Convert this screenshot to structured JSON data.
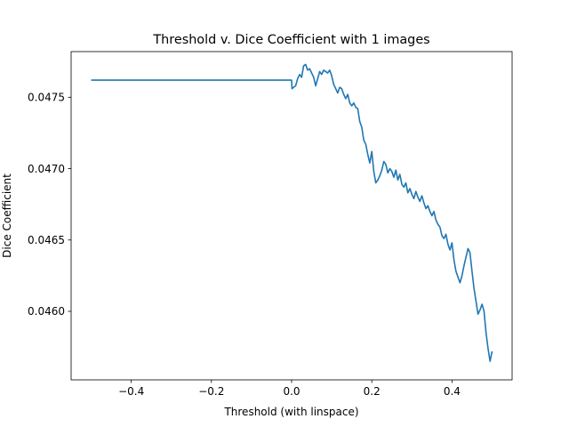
{
  "chart_data": {
    "type": "line",
    "title": "Threshold v. Dice Coefficient with 1 images",
    "xlabel": "Threshold (with linspace)",
    "ylabel": "Dice Coefficient",
    "xlim": [
      -0.55,
      0.55
    ],
    "ylim": [
      0.04552,
      0.04782
    ],
    "x_ticks": [
      -0.4,
      -0.2,
      0.0,
      0.2,
      0.4
    ],
    "x_tick_labels": [
      "−0.4",
      "−0.2",
      "0.0",
      "0.2",
      "0.4"
    ],
    "y_ticks": [
      0.046,
      0.0465,
      0.047,
      0.0475
    ],
    "y_tick_labels": [
      "0.0460",
      "0.0465",
      "0.0470",
      "0.0475"
    ],
    "grid": false,
    "line_color": "#1f77b4",
    "series": [
      {
        "x": [
          -0.5,
          0.0,
          0.001,
          0.005,
          0.01,
          0.015,
          0.02,
          0.025,
          0.03,
          0.035,
          0.04,
          0.045,
          0.05,
          0.055,
          0.06,
          0.065,
          0.07,
          0.075,
          0.08,
          0.085,
          0.09,
          0.095,
          0.1,
          0.105,
          0.11,
          0.115,
          0.12,
          0.125,
          0.13,
          0.135,
          0.14,
          0.145,
          0.15,
          0.155,
          0.16,
          0.165,
          0.17,
          0.175,
          0.18,
          0.185,
          0.19,
          0.195,
          0.2,
          0.205,
          0.21,
          0.215,
          0.22,
          0.225,
          0.23,
          0.235,
          0.24,
          0.245,
          0.25,
          0.255,
          0.26,
          0.265,
          0.27,
          0.275,
          0.28,
          0.285,
          0.29,
          0.295,
          0.3,
          0.305,
          0.31,
          0.315,
          0.32,
          0.325,
          0.33,
          0.335,
          0.34,
          0.345,
          0.35,
          0.355,
          0.36,
          0.365,
          0.37,
          0.375,
          0.38,
          0.385,
          0.39,
          0.395,
          0.4,
          0.405,
          0.41,
          0.415,
          0.42,
          0.425,
          0.43,
          0.435,
          0.44,
          0.445,
          0.45,
          0.455,
          0.46,
          0.465,
          0.47,
          0.475,
          0.48,
          0.485,
          0.49,
          0.495,
          0.5
        ],
        "y": [
          0.04762,
          0.04762,
          0.04756,
          0.04757,
          0.04758,
          0.04763,
          0.04766,
          0.04764,
          0.04772,
          0.04773,
          0.04769,
          0.0477,
          0.04767,
          0.04764,
          0.04758,
          0.04763,
          0.04768,
          0.04766,
          0.04769,
          0.04768,
          0.04767,
          0.04769,
          0.04765,
          0.04759,
          0.04756,
          0.04753,
          0.04757,
          0.04756,
          0.04752,
          0.04749,
          0.04752,
          0.04746,
          0.04744,
          0.04746,
          0.04743,
          0.04742,
          0.04733,
          0.04729,
          0.0472,
          0.04717,
          0.0471,
          0.04704,
          0.04712,
          0.04698,
          0.0469,
          0.04692,
          0.04695,
          0.04699,
          0.04705,
          0.04703,
          0.04697,
          0.047,
          0.04698,
          0.04694,
          0.04699,
          0.04692,
          0.04696,
          0.04689,
          0.04687,
          0.0469,
          0.04683,
          0.04686,
          0.04682,
          0.04679,
          0.04684,
          0.0468,
          0.04677,
          0.04681,
          0.04676,
          0.04672,
          0.04674,
          0.0467,
          0.04667,
          0.0467,
          0.04664,
          0.04661,
          0.04659,
          0.04653,
          0.04651,
          0.04654,
          0.04647,
          0.04643,
          0.04648,
          0.04636,
          0.04628,
          0.04624,
          0.0462,
          0.04625,
          0.04632,
          0.04638,
          0.04644,
          0.04641,
          0.04628,
          0.04616,
          0.04607,
          0.04598,
          0.04601,
          0.04605,
          0.046,
          0.04585,
          0.04574,
          0.04565,
          0.04572
        ]
      }
    ]
  }
}
